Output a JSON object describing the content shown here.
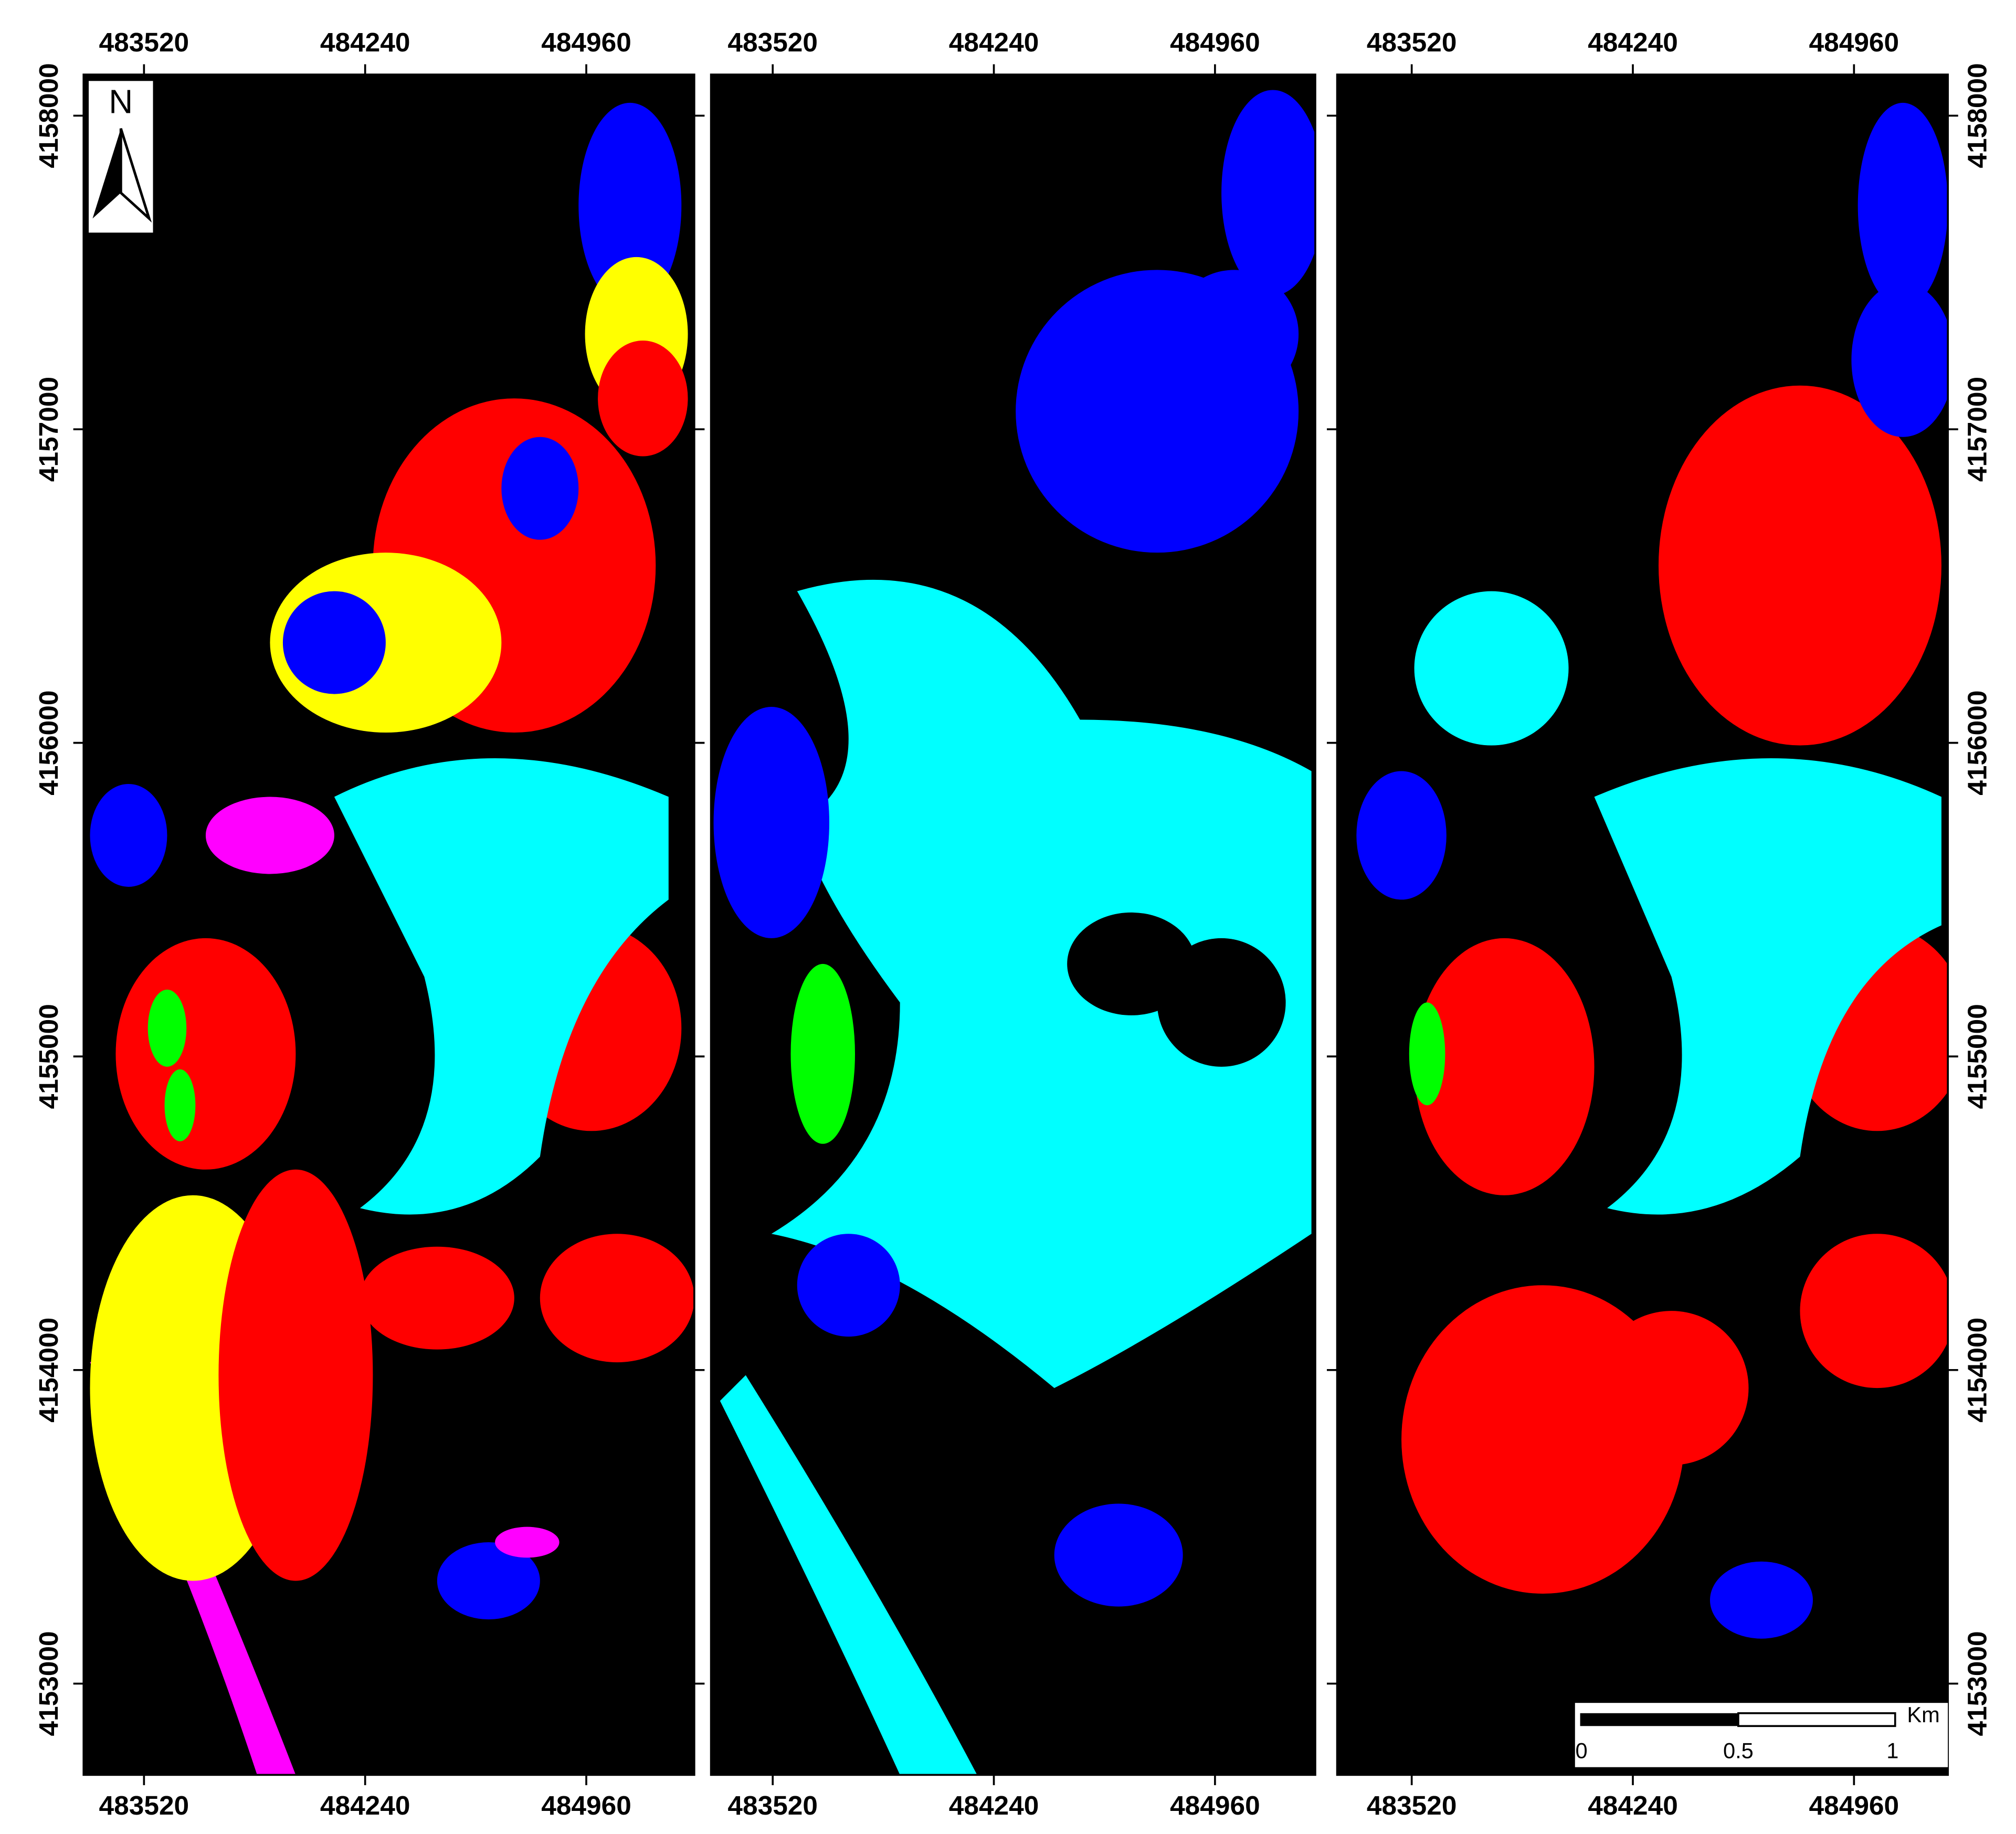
{
  "panels": [
    {
      "top_ticks": [
        "483520",
        "484240",
        "484960"
      ],
      "bottom_ticks": [
        "483520",
        "484240",
        "484960"
      ]
    },
    {
      "top_ticks": [
        "483520",
        "484240",
        "484960"
      ],
      "bottom_ticks": [
        "483520",
        "484240",
        "484960"
      ]
    },
    {
      "top_ticks": [
        "483520",
        "484240",
        "484960"
      ],
      "bottom_ticks": [
        "483520",
        "484240",
        "484960"
      ]
    }
  ],
  "left_ticks": [
    "4158000",
    "4157000",
    "4156000",
    "4155000",
    "4154000",
    "4153000"
  ],
  "right_ticks": [
    "4158000",
    "4157000",
    "4156000",
    "4155000",
    "4154000",
    "4153000"
  ],
  "north_label": "N",
  "scale_bar": {
    "unit": "Km",
    "labels": [
      "0",
      "0.5",
      "1"
    ]
  }
}
